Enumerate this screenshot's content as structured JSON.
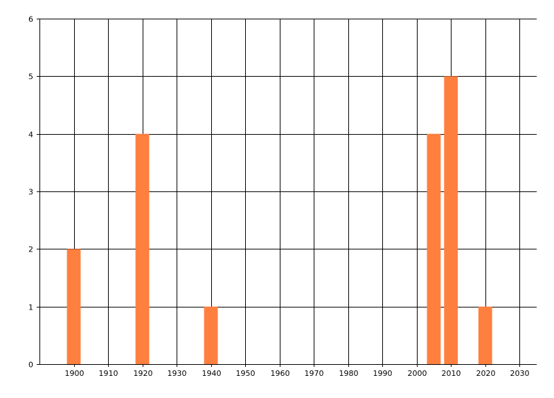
{
  "chart_data": {
    "type": "bar",
    "title": "",
    "xlabel": "",
    "ylabel": "",
    "x": [
      1900,
      1920,
      1940,
      2005,
      2010,
      2020
    ],
    "values": [
      2,
      4,
      1,
      4,
      5,
      1
    ],
    "bar_width_years": 4,
    "xlim": [
      1890,
      2035
    ],
    "ylim": [
      0,
      6
    ],
    "x_ticks": [
      1900,
      1910,
      1920,
      1930,
      1940,
      1950,
      1960,
      1970,
      1980,
      1990,
      2000,
      2010,
      2020,
      2030
    ],
    "y_ticks": [
      0,
      1,
      2,
      3,
      4,
      5,
      6
    ],
    "grid": true,
    "legend": "none",
    "colors": {
      "bar": "#ff7f3f",
      "grid": "#000000",
      "background": "#ffffff"
    }
  }
}
